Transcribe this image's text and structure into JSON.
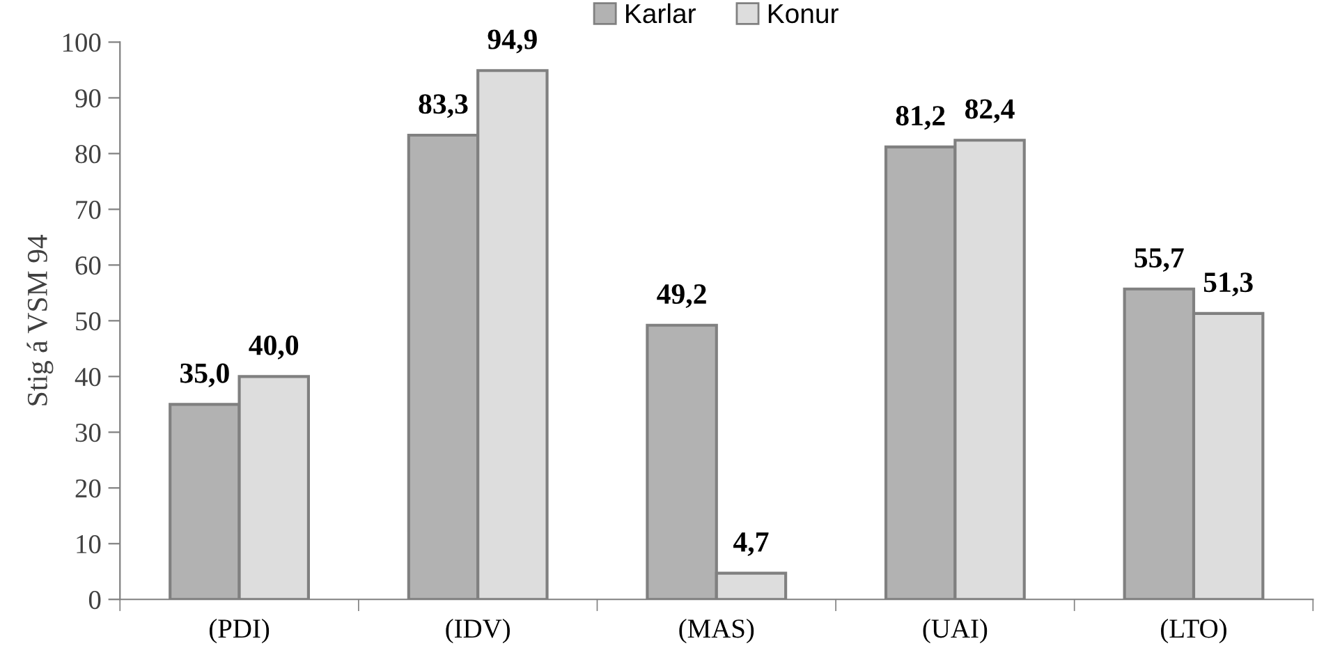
{
  "chart_data": {
    "type": "bar",
    "ylabel": "Stig á VSM 94",
    "categories": [
      "(PDI)",
      "(IDV)",
      "(MAS)",
      "(UAI)",
      "(LTO)"
    ],
    "series": [
      {
        "name": "Karlar",
        "color": "#b2b2b2",
        "values": [
          35.0,
          83.3,
          49.2,
          81.2,
          55.7
        ],
        "value_labels": [
          "35,0",
          "83,3",
          "49,2",
          "81,2",
          "55,7"
        ]
      },
      {
        "name": "Konur",
        "color": "#dddddd",
        "values": [
          40.0,
          94.9,
          4.7,
          82.4,
          51.3
        ],
        "value_labels": [
          "40,0",
          "94,9",
          "4,7",
          "82,4",
          "51,3"
        ]
      }
    ],
    "ylim": [
      0,
      100
    ],
    "yticks": [
      0,
      10,
      20,
      30,
      40,
      50,
      60,
      70,
      80,
      90,
      100
    ],
    "grid": false,
    "legend": "top"
  }
}
